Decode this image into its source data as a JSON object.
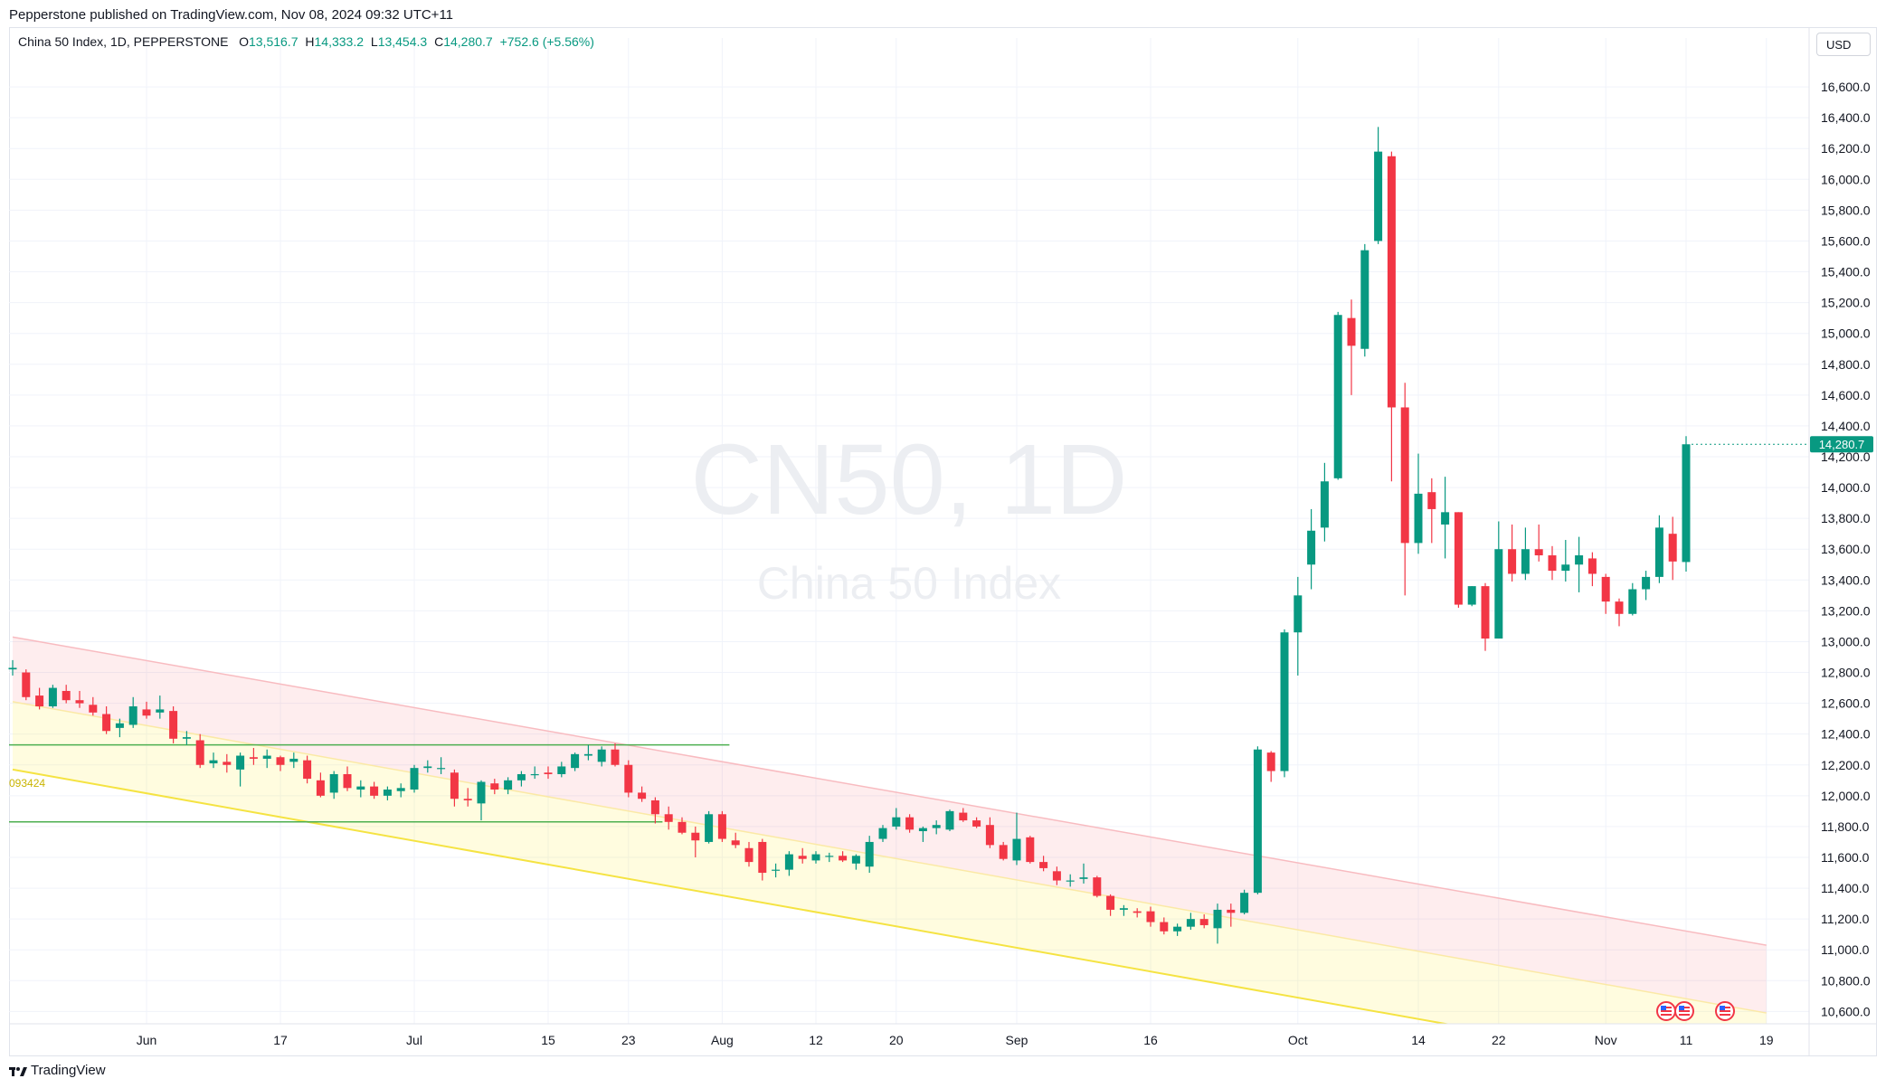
{
  "header": {
    "publisher_line": "Pepperstone published on TradingView.com, Nov 08, 2024 09:32 UTC+11"
  },
  "legend": {
    "symbol_line": "China 50 Index, 1D, PEPPERSTONE",
    "open_label": "O",
    "open": "13,516.7",
    "high_label": "H",
    "high": "14,333.2",
    "low_label": "L",
    "low": "13,454.3",
    "close_label": "C",
    "close": "14,280.7",
    "change": "+752.6 (+5.56%)"
  },
  "currency_button": "USD",
  "watermark": {
    "symbol": "CN50, 1D",
    "name": "China 50 Index"
  },
  "price_badge": "14,280.7",
  "footer": {
    "brand": "TradingView"
  },
  "level_label": "093424",
  "colors": {
    "up": "#089981",
    "down": "#f23645",
    "level_line": "#4caf50",
    "channel_pink": "#f8bbc0",
    "channel_yellow": "#f5e342"
  },
  "chart_data": {
    "type": "candlestick",
    "title": "China 50 Index, 1D, PEPPERSTONE",
    "currency": "USD",
    "y_ticks": [
      10600,
      10800,
      11000,
      11200,
      11400,
      11600,
      11800,
      12000,
      12200,
      12400,
      12600,
      12800,
      13000,
      13200,
      13400,
      13600,
      13800,
      14000,
      14200,
      14400,
      14600,
      14800,
      15000,
      15200,
      15400,
      15600,
      15800,
      16000,
      16200,
      16400,
      16600
    ],
    "ylim": [
      10520,
      16800
    ],
    "x_tick_labels": [
      {
        "label": "Jun",
        "date": "2024-06-03"
      },
      {
        "label": "17",
        "date": "2024-06-17"
      },
      {
        "label": "Jul",
        "date": "2024-07-01"
      },
      {
        "label": "15",
        "date": "2024-07-15"
      },
      {
        "label": "23",
        "date": "2024-07-23"
      },
      {
        "label": "Aug",
        "date": "2024-08-01"
      },
      {
        "label": "12",
        "date": "2024-08-12"
      },
      {
        "label": "20",
        "date": "2024-08-20"
      },
      {
        "label": "Sep",
        "date": "2024-09-02"
      },
      {
        "label": "16",
        "date": "2024-09-16"
      },
      {
        "label": "Oct",
        "date": "2024-10-01"
      },
      {
        "label": "14",
        "date": "2024-10-14"
      },
      {
        "label": "22",
        "date": "2024-10-22"
      },
      {
        "label": "Nov",
        "date": "2024-11-01"
      },
      {
        "label": "11",
        "date": "2024-11-11"
      },
      {
        "label": "19",
        "date": "2024-11-19"
      }
    ],
    "candles": [
      {
        "d": "2024-05-20",
        "o": 12820,
        "h": 12880,
        "l": 12780,
        "c": 12830
      },
      {
        "d": "2024-05-21",
        "o": 12800,
        "h": 12820,
        "l": 12620,
        "c": 12640
      },
      {
        "d": "2024-05-22",
        "o": 12650,
        "h": 12700,
        "l": 12560,
        "c": 12580
      },
      {
        "d": "2024-05-23",
        "o": 12580,
        "h": 12720,
        "l": 12570,
        "c": 12700
      },
      {
        "d": "2024-05-24",
        "o": 12680,
        "h": 12720,
        "l": 12600,
        "c": 12620
      },
      {
        "d": "2024-05-27",
        "o": 12620,
        "h": 12680,
        "l": 12570,
        "c": 12600
      },
      {
        "d": "2024-05-28",
        "o": 12590,
        "h": 12640,
        "l": 12520,
        "c": 12540
      },
      {
        "d": "2024-05-29",
        "o": 12530,
        "h": 12580,
        "l": 12400,
        "c": 12420
      },
      {
        "d": "2024-05-30",
        "o": 12440,
        "h": 12500,
        "l": 12380,
        "c": 12470
      },
      {
        "d": "2024-05-31",
        "o": 12460,
        "h": 12640,
        "l": 12440,
        "c": 12580
      },
      {
        "d": "2024-06-03",
        "o": 12560,
        "h": 12610,
        "l": 12500,
        "c": 12520
      },
      {
        "d": "2024-06-04",
        "o": 12540,
        "h": 12650,
        "l": 12500,
        "c": 12560
      },
      {
        "d": "2024-06-05",
        "o": 12550,
        "h": 12580,
        "l": 12340,
        "c": 12370
      },
      {
        "d": "2024-06-06",
        "o": 12370,
        "h": 12420,
        "l": 12330,
        "c": 12380
      },
      {
        "d": "2024-06-07",
        "o": 12360,
        "h": 12400,
        "l": 12180,
        "c": 12200
      },
      {
        "d": "2024-06-10",
        "o": 12210,
        "h": 12280,
        "l": 12180,
        "c": 12230
      },
      {
        "d": "2024-06-11",
        "o": 12220,
        "h": 12270,
        "l": 12150,
        "c": 12200
      },
      {
        "d": "2024-06-12",
        "o": 12170,
        "h": 12280,
        "l": 12060,
        "c": 12260
      },
      {
        "d": "2024-06-13",
        "o": 12250,
        "h": 12310,
        "l": 12200,
        "c": 12240
      },
      {
        "d": "2024-06-14",
        "o": 12240,
        "h": 12300,
        "l": 12180,
        "c": 12260
      },
      {
        "d": "2024-06-17",
        "o": 12250,
        "h": 12260,
        "l": 12160,
        "c": 12200
      },
      {
        "d": "2024-06-18",
        "o": 12220,
        "h": 12280,
        "l": 12180,
        "c": 12240
      },
      {
        "d": "2024-06-19",
        "o": 12230,
        "h": 12260,
        "l": 12080,
        "c": 12110
      },
      {
        "d": "2024-06-20",
        "o": 12100,
        "h": 12150,
        "l": 11990,
        "c": 12000
      },
      {
        "d": "2024-06-21",
        "o": 12020,
        "h": 12160,
        "l": 11980,
        "c": 12140
      },
      {
        "d": "2024-06-24",
        "o": 12140,
        "h": 12190,
        "l": 12030,
        "c": 12050
      },
      {
        "d": "2024-06-25",
        "o": 12040,
        "h": 12100,
        "l": 11990,
        "c": 12060
      },
      {
        "d": "2024-06-26",
        "o": 12060,
        "h": 12090,
        "l": 11980,
        "c": 12000
      },
      {
        "d": "2024-06-27",
        "o": 12000,
        "h": 12060,
        "l": 11970,
        "c": 12040
      },
      {
        "d": "2024-06-28",
        "o": 12030,
        "h": 12080,
        "l": 11990,
        "c": 12050
      },
      {
        "d": "2024-07-01",
        "o": 12040,
        "h": 12200,
        "l": 12020,
        "c": 12180
      },
      {
        "d": "2024-07-02",
        "o": 12180,
        "h": 12230,
        "l": 12150,
        "c": 12190
      },
      {
        "d": "2024-07-03",
        "o": 12180,
        "h": 12250,
        "l": 12140,
        "c": 12180
      },
      {
        "d": "2024-07-04",
        "o": 12150,
        "h": 12170,
        "l": 11930,
        "c": 11980
      },
      {
        "d": "2024-07-05",
        "o": 11980,
        "h": 12050,
        "l": 11930,
        "c": 11970
      },
      {
        "d": "2024-07-08",
        "o": 11950,
        "h": 12100,
        "l": 11840,
        "c": 12090
      },
      {
        "d": "2024-07-09",
        "o": 12080,
        "h": 12110,
        "l": 12010,
        "c": 12040
      },
      {
        "d": "2024-07-10",
        "o": 12040,
        "h": 12120,
        "l": 12010,
        "c": 12100
      },
      {
        "d": "2024-07-11",
        "o": 12100,
        "h": 12160,
        "l": 12060,
        "c": 12140
      },
      {
        "d": "2024-07-12",
        "o": 12140,
        "h": 12190,
        "l": 12110,
        "c": 12140
      },
      {
        "d": "2024-07-15",
        "o": 12150,
        "h": 12190,
        "l": 12110,
        "c": 12140
      },
      {
        "d": "2024-07-16",
        "o": 12140,
        "h": 12220,
        "l": 12120,
        "c": 12190
      },
      {
        "d": "2024-07-17",
        "o": 12180,
        "h": 12280,
        "l": 12160,
        "c": 12270
      },
      {
        "d": "2024-07-18",
        "o": 12260,
        "h": 12330,
        "l": 12230,
        "c": 12270
      },
      {
        "d": "2024-07-19",
        "o": 12220,
        "h": 12320,
        "l": 12190,
        "c": 12300
      },
      {
        "d": "2024-07-22",
        "o": 12300,
        "h": 12340,
        "l": 12190,
        "c": 12200
      },
      {
        "d": "2024-07-23",
        "o": 12200,
        "h": 12230,
        "l": 11990,
        "c": 12020
      },
      {
        "d": "2024-07-24",
        "o": 12020,
        "h": 12060,
        "l": 11960,
        "c": 11980
      },
      {
        "d": "2024-07-25",
        "o": 11970,
        "h": 11990,
        "l": 11820,
        "c": 11880
      },
      {
        "d": "2024-07-26",
        "o": 11880,
        "h": 11930,
        "l": 11780,
        "c": 11830
      },
      {
        "d": "2024-07-29",
        "o": 11830,
        "h": 11860,
        "l": 11750,
        "c": 11760
      },
      {
        "d": "2024-07-30",
        "o": 11760,
        "h": 11800,
        "l": 11600,
        "c": 11710
      },
      {
        "d": "2024-07-31",
        "o": 11700,
        "h": 11900,
        "l": 11690,
        "c": 11880
      },
      {
        "d": "2024-08-01",
        "o": 11880,
        "h": 11900,
        "l": 11700,
        "c": 11720
      },
      {
        "d": "2024-08-02",
        "o": 11710,
        "h": 11760,
        "l": 11660,
        "c": 11680
      },
      {
        "d": "2024-08-05",
        "o": 11660,
        "h": 11700,
        "l": 11540,
        "c": 11570
      },
      {
        "d": "2024-08-06",
        "o": 11700,
        "h": 11720,
        "l": 11450,
        "c": 11500
      },
      {
        "d": "2024-08-07",
        "o": 11520,
        "h": 11560,
        "l": 11470,
        "c": 11520
      },
      {
        "d": "2024-08-08",
        "o": 11520,
        "h": 11640,
        "l": 11480,
        "c": 11620
      },
      {
        "d": "2024-08-09",
        "o": 11610,
        "h": 11660,
        "l": 11560,
        "c": 11590
      },
      {
        "d": "2024-08-12",
        "o": 11580,
        "h": 11640,
        "l": 11560,
        "c": 11620
      },
      {
        "d": "2024-08-13",
        "o": 11610,
        "h": 11630,
        "l": 11570,
        "c": 11610
      },
      {
        "d": "2024-08-14",
        "o": 11610,
        "h": 11640,
        "l": 11570,
        "c": 11580
      },
      {
        "d": "2024-08-15",
        "o": 11560,
        "h": 11620,
        "l": 11520,
        "c": 11610
      },
      {
        "d": "2024-08-16",
        "o": 11540,
        "h": 11740,
        "l": 11500,
        "c": 11700
      },
      {
        "d": "2024-08-19",
        "o": 11720,
        "h": 11810,
        "l": 11700,
        "c": 11790
      },
      {
        "d": "2024-08-20",
        "o": 11800,
        "h": 11920,
        "l": 11780,
        "c": 11860
      },
      {
        "d": "2024-08-21",
        "o": 11860,
        "h": 11880,
        "l": 11760,
        "c": 11780
      },
      {
        "d": "2024-08-22",
        "o": 11770,
        "h": 11800,
        "l": 11700,
        "c": 11790
      },
      {
        "d": "2024-08-23",
        "o": 11790,
        "h": 11840,
        "l": 11750,
        "c": 11810
      },
      {
        "d": "2024-08-26",
        "o": 11780,
        "h": 11910,
        "l": 11770,
        "c": 11900
      },
      {
        "d": "2024-08-27",
        "o": 11890,
        "h": 11920,
        "l": 11830,
        "c": 11840
      },
      {
        "d": "2024-08-28",
        "o": 11840,
        "h": 11860,
        "l": 11790,
        "c": 11800
      },
      {
        "d": "2024-08-29",
        "o": 11810,
        "h": 11860,
        "l": 11660,
        "c": 11680
      },
      {
        "d": "2024-08-30",
        "o": 11680,
        "h": 11700,
        "l": 11580,
        "c": 11590
      },
      {
        "d": "2024-09-02",
        "o": 11580,
        "h": 11890,
        "l": 11550,
        "c": 11720
      },
      {
        "d": "2024-09-03",
        "o": 11730,
        "h": 11740,
        "l": 11560,
        "c": 11570
      },
      {
        "d": "2024-09-04",
        "o": 11570,
        "h": 11610,
        "l": 11510,
        "c": 11530
      },
      {
        "d": "2024-09-05",
        "o": 11510,
        "h": 11540,
        "l": 11420,
        "c": 11450
      },
      {
        "d": "2024-09-06",
        "o": 11450,
        "h": 11490,
        "l": 11410,
        "c": 11450
      },
      {
        "d": "2024-09-09",
        "o": 11460,
        "h": 11560,
        "l": 11430,
        "c": 11470
      },
      {
        "d": "2024-09-10",
        "o": 11470,
        "h": 11480,
        "l": 11340,
        "c": 11350
      },
      {
        "d": "2024-09-11",
        "o": 11350,
        "h": 11360,
        "l": 11220,
        "c": 11260
      },
      {
        "d": "2024-09-12",
        "o": 11260,
        "h": 11290,
        "l": 11220,
        "c": 11270
      },
      {
        "d": "2024-09-13",
        "o": 11250,
        "h": 11270,
        "l": 11210,
        "c": 11240
      },
      {
        "d": "2024-09-16",
        "o": 11250,
        "h": 11280,
        "l": 11150,
        "c": 11180
      },
      {
        "d": "2024-09-17",
        "o": 11180,
        "h": 11210,
        "l": 11100,
        "c": 11120
      },
      {
        "d": "2024-09-18",
        "o": 11120,
        "h": 11170,
        "l": 11090,
        "c": 11150
      },
      {
        "d": "2024-09-19",
        "o": 11150,
        "h": 11240,
        "l": 11130,
        "c": 11200
      },
      {
        "d": "2024-09-20",
        "o": 11200,
        "h": 11230,
        "l": 11140,
        "c": 11160
      },
      {
        "d": "2024-09-23",
        "o": 11140,
        "h": 11300,
        "l": 11040,
        "c": 11260
      },
      {
        "d": "2024-09-24",
        "o": 11260,
        "h": 11300,
        "l": 11150,
        "c": 11240
      },
      {
        "d": "2024-09-25",
        "o": 11240,
        "h": 11390,
        "l": 11230,
        "c": 11370
      },
      {
        "d": "2024-09-26",
        "o": 11370,
        "h": 12320,
        "l": 11360,
        "c": 12300
      },
      {
        "d": "2024-09-27",
        "o": 12280,
        "h": 12290,
        "l": 12090,
        "c": 12160
      },
      {
        "d": "2024-09-30",
        "o": 12160,
        "h": 13080,
        "l": 12120,
        "c": 13060
      },
      {
        "d": "2024-10-01",
        "o": 13060,
        "h": 13420,
        "l": 12780,
        "c": 13300
      },
      {
        "d": "2024-10-02",
        "o": 13500,
        "h": 13860,
        "l": 13340,
        "c": 13720
      },
      {
        "d": "2024-10-03",
        "o": 13740,
        "h": 14160,
        "l": 13650,
        "c": 14040
      },
      {
        "d": "2024-10-04",
        "o": 14060,
        "h": 15140,
        "l": 14050,
        "c": 15120
      },
      {
        "d": "2024-10-07",
        "o": 15100,
        "h": 15220,
        "l": 14600,
        "c": 14920
      },
      {
        "d": "2024-10-08",
        "o": 14900,
        "h": 15580,
        "l": 14850,
        "c": 15540
      },
      {
        "d": "2024-10-09",
        "o": 15600,
        "h": 16340,
        "l": 15580,
        "c": 16180
      },
      {
        "d": "2024-10-10",
        "o": 16150,
        "h": 16180,
        "l": 14040,
        "c": 14520
      },
      {
        "d": "2024-10-11",
        "o": 14520,
        "h": 14680,
        "l": 13300,
        "c": 13640
      },
      {
        "d": "2024-10-14",
        "o": 13640,
        "h": 14220,
        "l": 13570,
        "c": 13960
      },
      {
        "d": "2024-10-15",
        "o": 13970,
        "h": 14060,
        "l": 13640,
        "c": 13860
      },
      {
        "d": "2024-10-16",
        "o": 13760,
        "h": 14070,
        "l": 13540,
        "c": 13840
      },
      {
        "d": "2024-10-17",
        "o": 13840,
        "h": 13840,
        "l": 13220,
        "c": 13240
      },
      {
        "d": "2024-10-18",
        "o": 13240,
        "h": 13360,
        "l": 13230,
        "c": 13360
      },
      {
        "d": "2024-10-21",
        "o": 13360,
        "h": 13380,
        "l": 12940,
        "c": 13020
      },
      {
        "d": "2024-10-22",
        "o": 13020,
        "h": 13780,
        "l": 13020,
        "c": 13600
      },
      {
        "d": "2024-10-23",
        "o": 13600,
        "h": 13760,
        "l": 13390,
        "c": 13440
      },
      {
        "d": "2024-10-24",
        "o": 13440,
        "h": 13740,
        "l": 13400,
        "c": 13600
      },
      {
        "d": "2024-10-25",
        "o": 13600,
        "h": 13760,
        "l": 13520,
        "c": 13560
      },
      {
        "d": "2024-10-28",
        "o": 13560,
        "h": 13620,
        "l": 13400,
        "c": 13460
      },
      {
        "d": "2024-10-29",
        "o": 13460,
        "h": 13660,
        "l": 13390,
        "c": 13500
      },
      {
        "d": "2024-10-30",
        "o": 13500,
        "h": 13680,
        "l": 13320,
        "c": 13560
      },
      {
        "d": "2024-10-31",
        "o": 13540,
        "h": 13580,
        "l": 13360,
        "c": 13440
      },
      {
        "d": "2024-11-01",
        "o": 13420,
        "h": 13440,
        "l": 13180,
        "c": 13260
      },
      {
        "d": "2024-11-04",
        "o": 13260,
        "h": 13280,
        "l": 13100,
        "c": 13180
      },
      {
        "d": "2024-11-05",
        "o": 13180,
        "h": 13380,
        "l": 13170,
        "c": 13340
      },
      {
        "d": "2024-11-06",
        "o": 13340,
        "h": 13460,
        "l": 13270,
        "c": 13420
      },
      {
        "d": "2024-11-07",
        "o": 13420,
        "h": 13820,
        "l": 13380,
        "c": 13740
      },
      {
        "d": "2024-11-08",
        "o": 13700,
        "h": 13810,
        "l": 13400,
        "c": 13520
      },
      {
        "d": "2024-11-11",
        "o": 13516.7,
        "h": 14333.2,
        "l": 13454.3,
        "c": 14280.7
      }
    ],
    "horizontal_levels": [
      {
        "price": 12330,
        "from": "2024-05-20",
        "to": "2024-08-01"
      },
      {
        "price": 11830,
        "from": "2024-05-20",
        "to": "2024-07-25"
      }
    ],
    "channel": {
      "upper": [
        {
          "d": "2024-05-20",
          "price": 13030
        },
        {
          "d": "2024-11-19",
          "price": 11030
        }
      ],
      "middle": [
        {
          "d": "2024-05-20",
          "price": 12610
        },
        {
          "d": "2024-11-19",
          "price": 10590
        }
      ],
      "lower": [
        {
          "d": "2024-05-20",
          "price": 12170
        },
        {
          "d": "2024-11-19",
          "price": 10150
        }
      ]
    }
  }
}
